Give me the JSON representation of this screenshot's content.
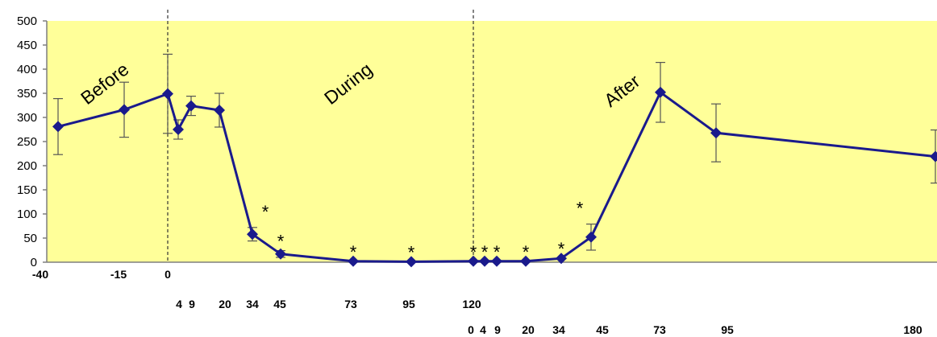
{
  "chart_data": {
    "type": "line",
    "title": "",
    "xlabel": "",
    "ylabel": "",
    "ylim": [
      0,
      500
    ],
    "y_ticks": [
      "0",
      "50",
      "100",
      "150",
      "200",
      "250",
      "300",
      "350",
      "400",
      "450",
      "500"
    ],
    "grid": false,
    "legend": "none",
    "colors": {
      "background": "#ffff99",
      "line": "#1a1a8c",
      "marker": "#1a1a8c",
      "error_bar": "#555555",
      "axis": "#7f7f7f"
    },
    "phases": [
      "Before",
      "During",
      "After"
    ],
    "significance_marker": "*",
    "x_tick_rows": [
      [
        "-40",
        "-15",
        "0"
      ],
      [
        "4",
        "9",
        "20",
        "34",
        "45",
        "73",
        "95",
        "120"
      ],
      [
        "0",
        "4",
        "9",
        "20",
        "34",
        "45",
        "73",
        "95",
        "180"
      ]
    ],
    "series": [
      {
        "points": [
          {
            "phase": "Before",
            "x": -40,
            "y": 281,
            "err": 58,
            "sig": false
          },
          {
            "phase": "Before",
            "x": -15,
            "y": 316,
            "err": 57,
            "sig": false
          },
          {
            "phase": "Before",
            "x": 0,
            "y": 349,
            "err": 82,
            "sig": false
          },
          {
            "phase": "During",
            "x": 4,
            "y": 275,
            "err": 20,
            "sig": false
          },
          {
            "phase": "During",
            "x": 9,
            "y": 324,
            "err": 20,
            "sig": false
          },
          {
            "phase": "During",
            "x": 20,
            "y": 315,
            "err": 35,
            "sig": false
          },
          {
            "phase": "During",
            "x": 34,
            "y": 58,
            "err": 14,
            "sig": true
          },
          {
            "phase": "During",
            "x": 45,
            "y": 17,
            "err": 7,
            "sig": true
          },
          {
            "phase": "During",
            "x": 73,
            "y": 2,
            "err": 0,
            "sig": true
          },
          {
            "phase": "During",
            "x": 95,
            "y": 1,
            "err": 0,
            "sig": true
          },
          {
            "phase": "During",
            "x": 120,
            "y": 2,
            "err": 0,
            "sig": true
          },
          {
            "phase": "After",
            "x": 4,
            "y": 2,
            "err": 0,
            "sig": true
          },
          {
            "phase": "After",
            "x": 9,
            "y": 2,
            "err": 0,
            "sig": true
          },
          {
            "phase": "After",
            "x": 20,
            "y": 2,
            "err": 0,
            "sig": true
          },
          {
            "phase": "After",
            "x": 34,
            "y": 8,
            "err": 0,
            "sig": true
          },
          {
            "phase": "After",
            "x": 45,
            "y": 52,
            "err": 27,
            "sig": true
          },
          {
            "phase": "After",
            "x": 73,
            "y": 352,
            "err": 62,
            "sig": false
          },
          {
            "phase": "After",
            "x": 95,
            "y": 268,
            "err": 60,
            "sig": false
          },
          {
            "phase": "After",
            "x": 180,
            "y": 219,
            "err": 55,
            "sig": false
          }
        ]
      }
    ]
  }
}
